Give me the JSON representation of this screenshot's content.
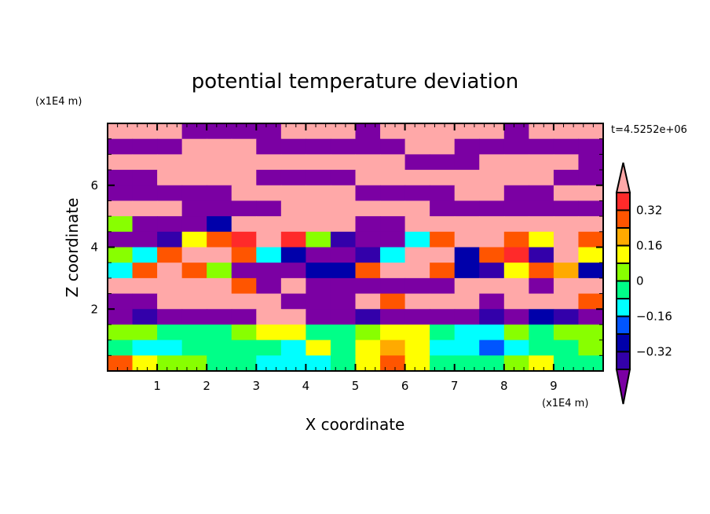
{
  "chart_data": {
    "type": "heatmap",
    "title": "potential temperature deviation",
    "xlabel": "X coordinate",
    "ylabel": "Z coordinate",
    "x_unit_label": "(x1E4 m)",
    "y_unit_label": "(x1E4 m)",
    "time_label": "t=4.5252e+06",
    "xlim": [
      0,
      10
    ],
    "ylim": [
      0,
      8
    ],
    "x_ticks": [
      1,
      2,
      3,
      4,
      5,
      6,
      7,
      8,
      9
    ],
    "y_ticks": [
      2,
      4,
      6
    ],
    "grid_note": "coarse approximation: rows from z=8 (top) to z=0 (bottom), each 0.5 units; columns from x=0 to x=10, each 0.5 units",
    "levels": [
      -0.4,
      -0.32,
      -0.24,
      -0.16,
      -0.08,
      0,
      0.08,
      0.16,
      0.24,
      0.32,
      0.4
    ],
    "colors": [
      "#7b00a3",
      "#3300aa",
      "#0000aa",
      "#0055ff",
      "#00ffff",
      "#00ff88",
      "#88ff00",
      "#ffff00",
      "#ffaa00",
      "#ff5500",
      "#ff2a2a",
      "#ffa8a8"
    ],
    "colorbar_labels": [
      {
        "value": 0.32,
        "text": "0.32"
      },
      {
        "value": 0.16,
        "text": "0.16"
      },
      {
        "value": 0,
        "text": "0"
      },
      {
        "value": -0.16,
        "text": "−0.16"
      },
      {
        "value": -0.32,
        "text": "−0.32"
      }
    ],
    "values": [
      [
        0.45,
        0.45,
        0.45,
        -0.45,
        -0.45,
        -0.45,
        -0.45,
        0.45,
        0.45,
        0.45,
        -0.45,
        0.45,
        0.45,
        0.45,
        0.45,
        0.45,
        -0.45,
        0.45,
        0.45,
        0.45
      ],
      [
        -0.45,
        -0.45,
        -0.45,
        0.45,
        0.45,
        0.45,
        -0.45,
        -0.45,
        -0.45,
        -0.45,
        -0.45,
        -0.45,
        0.45,
        0.45,
        -0.45,
        -0.45,
        -0.45,
        -0.45,
        -0.45,
        -0.45
      ],
      [
        0.45,
        0.45,
        0.45,
        0.45,
        0.45,
        0.45,
        0.45,
        0.45,
        0.45,
        0.45,
        0.45,
        0.45,
        -0.45,
        -0.45,
        -0.45,
        0.45,
        0.45,
        0.45,
        0.45,
        -0.45
      ],
      [
        -0.45,
        -0.45,
        0.45,
        0.45,
        0.45,
        0.45,
        -0.45,
        -0.45,
        -0.45,
        -0.45,
        0.45,
        0.45,
        0.45,
        0.45,
        0.45,
        0.45,
        0.45,
        0.45,
        -0.45,
        -0.45
      ],
      [
        -0.45,
        -0.45,
        -0.45,
        -0.45,
        -0.45,
        0.45,
        0.45,
        0.45,
        0.45,
        0.45,
        -0.45,
        -0.45,
        -0.45,
        -0.45,
        0.45,
        0.45,
        -0.45,
        -0.45,
        0.45,
        0.45
      ],
      [
        0.45,
        0.45,
        0.45,
        -0.45,
        -0.45,
        -0.45,
        -0.45,
        0.45,
        0.45,
        0.45,
        0.45,
        0.45,
        0.45,
        -0.45,
        -0.45,
        -0.45,
        -0.45,
        -0.45,
        -0.45,
        -0.45
      ],
      [
        0.04,
        -0.45,
        -0.45,
        -0.45,
        -0.28,
        0.45,
        0.45,
        0.45,
        0.45,
        0.45,
        -0.45,
        -0.45,
        0.45,
        0.45,
        0.45,
        0.45,
        0.45,
        0.45,
        0.45,
        0.45
      ],
      [
        -0.45,
        -0.45,
        -0.36,
        0.12,
        0.28,
        0.36,
        0.45,
        0.36,
        0.04,
        -0.36,
        -0.45,
        -0.45,
        -0.12,
        0.28,
        0.45,
        0.45,
        0.28,
        0.12,
        0.45,
        0.28
      ],
      [
        0.04,
        -0.12,
        0.28,
        0.45,
        0.45,
        0.28,
        -0.12,
        -0.28,
        -0.45,
        -0.45,
        -0.36,
        -0.12,
        0.45,
        0.45,
        -0.28,
        0.28,
        0.36,
        -0.36,
        0.45,
        0.12
      ],
      [
        -0.12,
        0.28,
        0.45,
        0.28,
        0.04,
        -0.45,
        -0.45,
        -0.45,
        -0.28,
        -0.28,
        0.28,
        0.45,
        0.45,
        0.28,
        -0.28,
        -0.36,
        0.12,
        0.28,
        0.2,
        -0.28
      ],
      [
        0.45,
        0.45,
        0.45,
        0.45,
        0.45,
        0.28,
        -0.45,
        0.45,
        -0.45,
        -0.45,
        -0.45,
        -0.45,
        -0.45,
        -0.45,
        0.45,
        0.45,
        0.45,
        -0.45,
        0.45,
        0.45
      ],
      [
        -0.45,
        -0.45,
        0.45,
        0.45,
        0.45,
        0.45,
        0.45,
        -0.45,
        -0.45,
        -0.45,
        0.45,
        0.28,
        0.45,
        0.45,
        0.45,
        -0.45,
        0.45,
        0.45,
        0.45,
        0.28
      ],
      [
        -0.45,
        -0.36,
        -0.45,
        -0.45,
        -0.45,
        -0.45,
        0.45,
        0.45,
        -0.45,
        -0.45,
        -0.36,
        -0.45,
        -0.45,
        -0.45,
        -0.45,
        -0.36,
        -0.45,
        -0.28,
        -0.36,
        -0.45
      ],
      [
        0.04,
        0.04,
        -0.04,
        -0.04,
        -0.04,
        0.04,
        0.12,
        0.12,
        -0.04,
        -0.04,
        0.04,
        0.12,
        0.12,
        -0.04,
        -0.12,
        -0.12,
        0.04,
        -0.04,
        0.04,
        0.04
      ],
      [
        -0.04,
        -0.12,
        -0.12,
        -0.04,
        -0.04,
        -0.04,
        -0.04,
        -0.12,
        0.12,
        -0.04,
        0.12,
        0.2,
        0.12,
        -0.12,
        -0.12,
        -0.2,
        -0.12,
        -0.04,
        -0.04,
        0.04
      ],
      [
        0.28,
        0.12,
        0.04,
        0.04,
        -0.04,
        -0.04,
        -0.12,
        -0.12,
        -0.12,
        -0.04,
        0.12,
        0.28,
        0.12,
        -0.04,
        -0.04,
        -0.04,
        0.04,
        0.12,
        -0.04,
        -0.04
      ]
    ]
  }
}
